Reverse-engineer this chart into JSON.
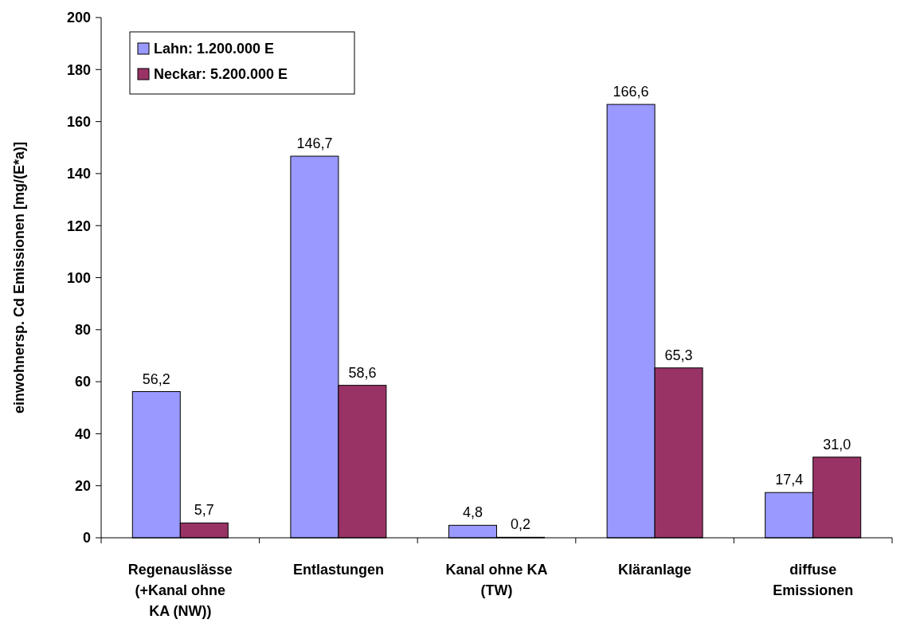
{
  "chart_data": {
    "type": "bar",
    "ylabel": "einwohnersp. Cd Emissionen [mg/(E*a)]",
    "categories": [
      "Regenauslässe (+Kanal ohne KA (NW))",
      "Entlastungen",
      "Kanal ohne KA (TW)",
      "Kläranlage",
      "diffuse Emissionen"
    ],
    "series": [
      {
        "name": "Lahn: 1.200.000 E",
        "color": "#9999ff",
        "values": [
          56.2,
          146.7,
          4.8,
          166.6,
          17.4
        ],
        "value_labels": [
          "56,2",
          "146,7",
          "4,8",
          "166,6",
          "17,4"
        ]
      },
      {
        "name": "Neckar: 5.200.000 E",
        "color": "#993366",
        "values": [
          5.7,
          58.6,
          0.2,
          65.3,
          31.0
        ],
        "value_labels": [
          "5,7",
          "58,6",
          "0,2",
          "65,3",
          "31,0"
        ]
      }
    ],
    "ylim": [
      0,
      200
    ],
    "yticks": [
      0,
      20,
      40,
      60,
      80,
      100,
      120,
      140,
      160,
      180,
      200
    ],
    "grid": false,
    "legend": "top left"
  }
}
